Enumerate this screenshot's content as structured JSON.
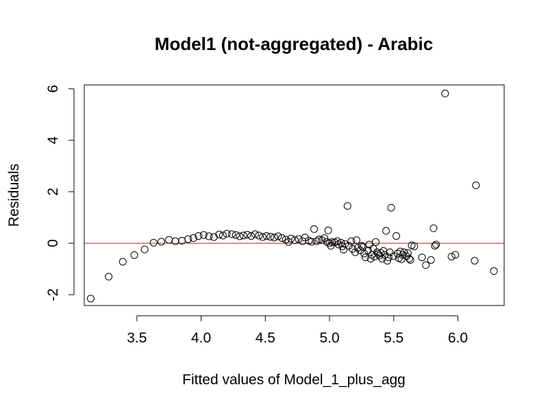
{
  "chart_data": {
    "type": "scatter",
    "title": "Model1 (not-aggregated) - Arabic",
    "xlabel": "Fitted values of Model_1_plus_agg",
    "ylabel": "Residuals",
    "xlim": [
      3.09,
      6.36
    ],
    "ylim": [
      -2.42,
      6.15
    ],
    "x_ticks": [
      3.5,
      4.0,
      4.5,
      5.0,
      5.5,
      6.0
    ],
    "x_tick_labels": [
      "3.5",
      "4.0",
      "4.5",
      "5.0",
      "5.5",
      "6.0"
    ],
    "y_ticks": [
      -2,
      0,
      2,
      4,
      6
    ],
    "y_tick_labels": [
      "-2",
      "0",
      "2",
      "4",
      "6"
    ],
    "reference_line": {
      "y": 0,
      "color": "#b22222"
    },
    "grid": false,
    "legend": "none",
    "marker": "open-circle",
    "points": [
      [
        3.14,
        -2.15
      ],
      [
        3.28,
        -1.3
      ],
      [
        3.39,
        -0.72
      ],
      [
        3.48,
        -0.46
      ],
      [
        3.56,
        -0.24
      ],
      [
        3.63,
        0.02
      ],
      [
        3.69,
        0.06
      ],
      [
        3.75,
        0.13
      ],
      [
        3.8,
        0.08
      ],
      [
        3.85,
        0.1
      ],
      [
        3.9,
        0.16
      ],
      [
        3.94,
        0.2
      ],
      [
        3.98,
        0.28
      ],
      [
        4.02,
        0.32
      ],
      [
        4.06,
        0.27
      ],
      [
        4.1,
        0.24
      ],
      [
        4.14,
        0.34
      ],
      [
        4.17,
        0.3
      ],
      [
        4.2,
        0.37
      ],
      [
        4.24,
        0.35
      ],
      [
        4.27,
        0.32
      ],
      [
        4.3,
        0.27
      ],
      [
        4.33,
        0.3
      ],
      [
        4.36,
        0.33
      ],
      [
        4.39,
        0.28
      ],
      [
        4.42,
        0.35
      ],
      [
        4.45,
        0.3
      ],
      [
        4.48,
        0.24
      ],
      [
        4.51,
        0.28
      ],
      [
        4.54,
        0.25
      ],
      [
        4.57,
        0.22
      ],
      [
        4.6,
        0.27
      ],
      [
        4.63,
        0.2
      ],
      [
        4.66,
        0.14
      ],
      [
        4.68,
        0.05
      ],
      [
        4.7,
        0.18
      ],
      [
        4.73,
        0.12
      ],
      [
        4.76,
        0.16
      ],
      [
        4.79,
        0.08
      ],
      [
        4.81,
        0.22
      ],
      [
        4.84,
        0.1
      ],
      [
        4.86,
        0.06
      ],
      [
        4.88,
        0.55
      ],
      [
        4.9,
        0.08
      ],
      [
        4.92,
        0.15
      ],
      [
        4.94,
        0.12
      ],
      [
        4.96,
        0.2
      ],
      [
        4.98,
        0.05
      ],
      [
        4.99,
        0.5
      ],
      [
        5.0,
        0.0
      ],
      [
        5.01,
        -0.1
      ],
      [
        5.02,
        0.05
      ],
      [
        5.04,
        0.03
      ],
      [
        5.06,
        0.08
      ],
      [
        5.07,
        -0.05
      ],
      [
        5.09,
        0.02
      ],
      [
        5.1,
        -0.12
      ],
      [
        5.11,
        -0.25
      ],
      [
        5.12,
        -0.03
      ],
      [
        5.14,
        1.45
      ],
      [
        5.15,
        -0.1
      ],
      [
        5.17,
        0.08
      ],
      [
        5.18,
        -0.22
      ],
      [
        5.2,
        -0.35
      ],
      [
        5.21,
        0.12
      ],
      [
        5.22,
        -0.18
      ],
      [
        5.24,
        -0.28
      ],
      [
        5.25,
        -0.1
      ],
      [
        5.26,
        -0.15
      ],
      [
        5.27,
        -0.4
      ],
      [
        5.28,
        -0.55
      ],
      [
        5.3,
        -0.28
      ],
      [
        5.31,
        -0.05
      ],
      [
        5.32,
        -0.6
      ],
      [
        5.33,
        -0.45
      ],
      [
        5.34,
        -0.2
      ],
      [
        5.35,
        -0.52
      ],
      [
        5.36,
        0.05
      ],
      [
        5.37,
        -0.35
      ],
      [
        5.38,
        -0.42
      ],
      [
        5.39,
        -0.48
      ],
      [
        5.4,
        -0.38
      ],
      [
        5.41,
        -0.6
      ],
      [
        5.42,
        -0.3
      ],
      [
        5.43,
        -0.45
      ],
      [
        5.44,
        0.48
      ],
      [
        5.45,
        -0.68
      ],
      [
        5.46,
        -0.55
      ],
      [
        5.47,
        -0.35
      ],
      [
        5.48,
        1.38
      ],
      [
        5.5,
        -0.5
      ],
      [
        5.52,
        0.28
      ],
      [
        5.53,
        -0.4
      ],
      [
        5.54,
        -0.58
      ],
      [
        5.55,
        -0.32
      ],
      [
        5.56,
        -0.62
      ],
      [
        5.57,
        -0.45
      ],
      [
        5.58,
        -0.35
      ],
      [
        5.6,
        -0.5
      ],
      [
        5.61,
        -0.38
      ],
      [
        5.62,
        -0.6
      ],
      [
        5.63,
        -0.65
      ],
      [
        5.64,
        -0.08
      ],
      [
        5.66,
        -0.12
      ],
      [
        5.72,
        -0.55
      ],
      [
        5.75,
        -0.85
      ],
      [
        5.79,
        -0.65
      ],
      [
        5.81,
        0.58
      ],
      [
        5.82,
        -0.1
      ],
      [
        5.83,
        -0.05
      ],
      [
        5.9,
        5.82
      ],
      [
        5.95,
        -0.52
      ],
      [
        5.98,
        -0.45
      ],
      [
        6.13,
        -0.68
      ],
      [
        6.14,
        2.25
      ],
      [
        6.28,
        -1.08
      ]
    ]
  }
}
